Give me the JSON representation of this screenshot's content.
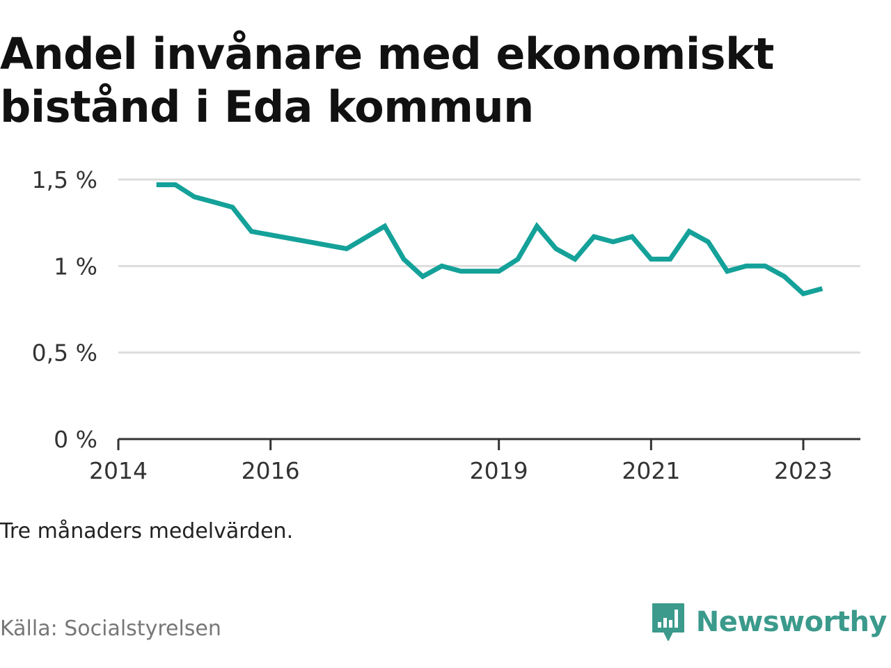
{
  "title": "Andel invånare med ekonomiskt bistånd i Eda kommun",
  "note": "Tre månaders medelvärden.",
  "source": "Källa: Socialstyrelsen",
  "brand": {
    "name": "Newsworthy",
    "icon": "bar-chart-speech-bubble-icon",
    "color": "#3b9a8c"
  },
  "colors": {
    "line": "#14a199",
    "grid": "#dddddd",
    "axis": "#333333"
  },
  "chart_data": {
    "type": "line",
    "title": "Andel invånare med ekonomiskt bistånd i Eda kommun",
    "xlabel": "",
    "ylabel": "",
    "ylim": [
      0,
      1.5
    ],
    "y_ticks": [
      {
        "value": 0,
        "label": "0 %"
      },
      {
        "value": 0.5,
        "label": "0,5 %"
      },
      {
        "value": 1,
        "label": "1 %"
      },
      {
        "value": 1.5,
        "label": "1,5 %"
      }
    ],
    "x_ticks": [
      {
        "value": "2014-01",
        "label": "2014"
      },
      {
        "value": "2016-01",
        "label": "2016"
      },
      {
        "value": "2019-01",
        "label": "2019"
      },
      {
        "value": "2021-01",
        "label": "2021"
      },
      {
        "value": "2023-01",
        "label": "2023"
      }
    ],
    "xlim": [
      "2014-01",
      "2023-07"
    ],
    "grid": true,
    "series": [
      {
        "values": [
          {
            "x": "2014-07",
            "y": 1.47
          },
          {
            "x": "2014-10",
            "y": 1.47
          },
          {
            "x": "2015-01",
            "y": 1.4
          },
          {
            "x": "2015-04",
            "y": 1.37
          },
          {
            "x": "2015-07",
            "y": 1.34
          },
          {
            "x": "2015-10",
            "y": 1.2
          },
          {
            "x": "2017-01",
            "y": 1.1
          },
          {
            "x": "2017-07",
            "y": 1.23
          },
          {
            "x": "2017-10",
            "y": 1.04
          },
          {
            "x": "2018-01",
            "y": 0.94
          },
          {
            "x": "2018-04",
            "y": 1.0
          },
          {
            "x": "2018-07",
            "y": 0.97
          },
          {
            "x": "2018-10",
            "y": 0.97
          },
          {
            "x": "2019-01",
            "y": 0.97
          },
          {
            "x": "2019-04",
            "y": 1.04
          },
          {
            "x": "2019-07",
            "y": 1.23
          },
          {
            "x": "2019-10",
            "y": 1.1
          },
          {
            "x": "2020-01",
            "y": 1.04
          },
          {
            "x": "2020-04",
            "y": 1.17
          },
          {
            "x": "2020-07",
            "y": 1.14
          },
          {
            "x": "2020-10",
            "y": 1.17
          },
          {
            "x": "2021-01",
            "y": 1.04
          },
          {
            "x": "2021-04",
            "y": 1.04
          },
          {
            "x": "2021-07",
            "y": 1.2
          },
          {
            "x": "2021-10",
            "y": 1.14
          },
          {
            "x": "2022-01",
            "y": 0.97
          },
          {
            "x": "2022-04",
            "y": 1.0
          },
          {
            "x": "2022-07",
            "y": 1.0
          },
          {
            "x": "2022-10",
            "y": 0.94
          },
          {
            "x": "2023-01",
            "y": 0.84
          },
          {
            "x": "2023-04",
            "y": 0.87
          }
        ]
      }
    ]
  }
}
